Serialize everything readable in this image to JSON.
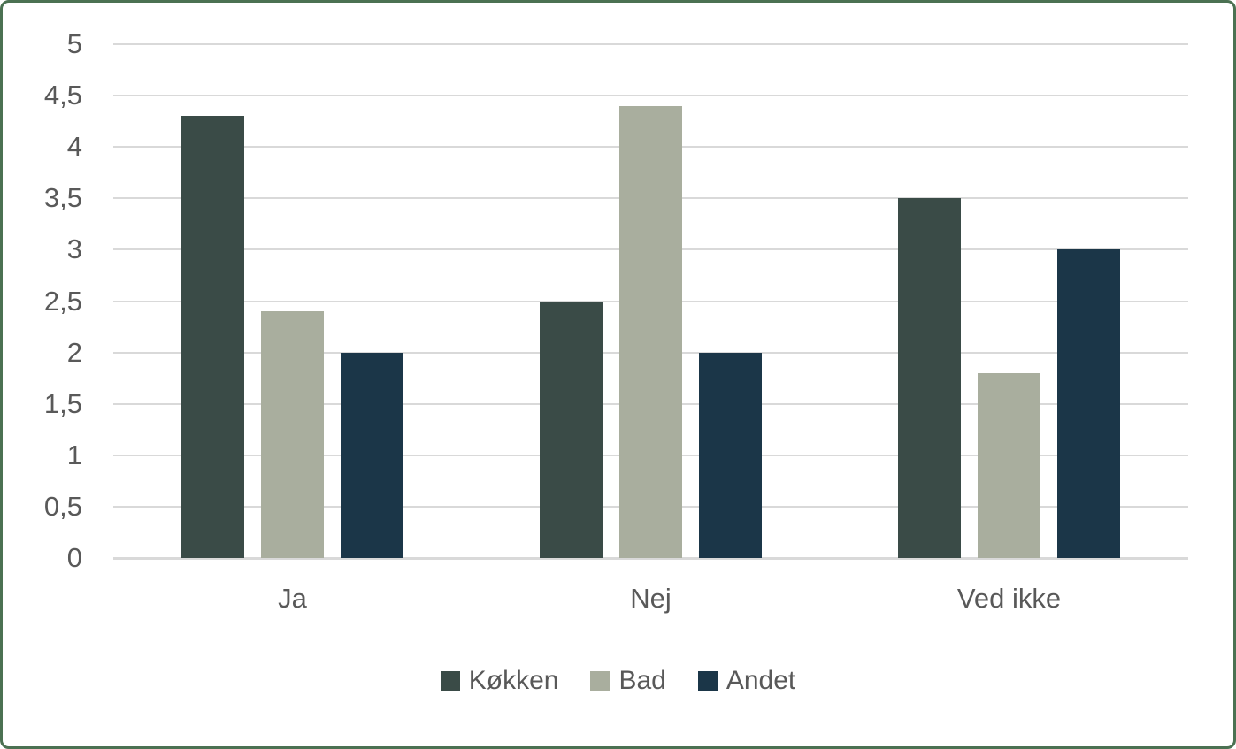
{
  "chart_data": {
    "type": "bar",
    "title": "",
    "xlabel": "",
    "ylabel": "",
    "categories": [
      "Ja",
      "Nej",
      "Ved ikke"
    ],
    "series": [
      {
        "name": "Køkken",
        "color": "#3a4b47",
        "values": [
          4.3,
          2.5,
          3.5
        ]
      },
      {
        "name": "Bad",
        "color": "#a9ae9e",
        "values": [
          2.4,
          4.4,
          1.8
        ]
      },
      {
        "name": "Andet",
        "color": "#1b3648",
        "values": [
          2.0,
          2.0,
          3.0
        ]
      }
    ],
    "ylim": [
      0,
      5
    ],
    "ytick_step": 0.5,
    "ytick_labels": [
      "0",
      "0,5",
      "1",
      "1,5",
      "2",
      "2,5",
      "3",
      "3,5",
      "4",
      "4,5",
      "5"
    ],
    "decimal_separator": ",",
    "grid": true,
    "legend_position": "bottom"
  },
  "colors": {
    "background": "#ffffff",
    "frame_border": "#4b7152",
    "gridline": "#d9d9d9",
    "axis_text": "#595959"
  }
}
